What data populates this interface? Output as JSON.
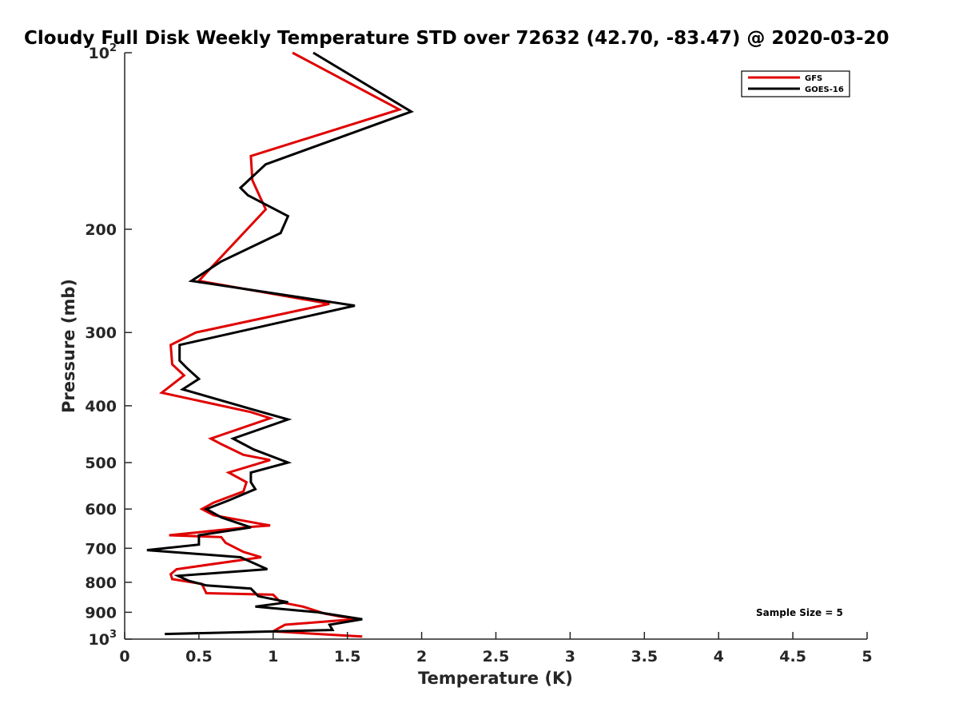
{
  "chart_data": {
    "type": "line",
    "title": "Cloudy Full Disk Weekly Temperature STD over 72632 (42.70, -83.47) @ 2020-03-20",
    "xlabel": "Temperature (K)",
    "ylabel": "Pressure (mb)",
    "xlim": [
      0,
      5
    ],
    "ylim": [
      100,
      1000
    ],
    "y_scale": "log",
    "y_reversed": true,
    "x_ticks": [
      {
        "value": 0,
        "label": "0"
      },
      {
        "value": 0.5,
        "label": "0.5"
      },
      {
        "value": 1,
        "label": "1"
      },
      {
        "value": 1.5,
        "label": "1.5"
      },
      {
        "value": 2,
        "label": "2"
      },
      {
        "value": 2.5,
        "label": "2.5"
      },
      {
        "value": 3,
        "label": "3"
      },
      {
        "value": 3.5,
        "label": "3.5"
      },
      {
        "value": 4,
        "label": "4"
      },
      {
        "value": 4.5,
        "label": "4.5"
      },
      {
        "value": 5,
        "label": "5"
      }
    ],
    "y_ticks": [
      {
        "value": 100,
        "base": "10",
        "exp": "2"
      },
      {
        "value": 200,
        "base": "200",
        "exp": ""
      },
      {
        "value": 300,
        "base": "300",
        "exp": ""
      },
      {
        "value": 400,
        "base": "400",
        "exp": ""
      },
      {
        "value": 500,
        "base": "500",
        "exp": ""
      },
      {
        "value": 600,
        "base": "600",
        "exp": ""
      },
      {
        "value": 700,
        "base": "700",
        "exp": ""
      },
      {
        "value": 800,
        "base": "800",
        "exp": ""
      },
      {
        "value": 900,
        "base": "900",
        "exp": ""
      },
      {
        "value": 1000,
        "base": "10",
        "exp": "3"
      }
    ],
    "grid": false,
    "legend_position": "top-right",
    "annotation": "Sample Size = 5",
    "series": [
      {
        "name": "GFS",
        "color": "#e00000",
        "points": [
          [
            1.13,
            100
          ],
          [
            1.85,
            125
          ],
          [
            0.85,
            150
          ],
          [
            0.86,
            165
          ],
          [
            0.95,
            185
          ],
          [
            0.6,
            230
          ],
          [
            0.5,
            245
          ],
          [
            1.38,
            268
          ],
          [
            0.48,
            300
          ],
          [
            0.31,
            315
          ],
          [
            0.32,
            340
          ],
          [
            0.4,
            355
          ],
          [
            0.25,
            380
          ],
          [
            0.85,
            410
          ],
          [
            0.98,
            420
          ],
          [
            0.58,
            455
          ],
          [
            0.65,
            465
          ],
          [
            0.8,
            485
          ],
          [
            0.98,
            495
          ],
          [
            0.7,
            520
          ],
          [
            0.82,
            540
          ],
          [
            0.8,
            560
          ],
          [
            0.6,
            585
          ],
          [
            0.52,
            600
          ],
          [
            0.6,
            615
          ],
          [
            0.9,
            635
          ],
          [
            0.98,
            640
          ],
          [
            0.87,
            643
          ],
          [
            0.3,
            665
          ],
          [
            0.65,
            670
          ],
          [
            0.68,
            685
          ],
          [
            0.8,
            710
          ],
          [
            0.92,
            725
          ],
          [
            0.35,
            760
          ],
          [
            0.31,
            775
          ],
          [
            0.32,
            790
          ],
          [
            0.52,
            805
          ],
          [
            0.55,
            835
          ],
          [
            1.0,
            840
          ],
          [
            1.05,
            865
          ],
          [
            1.2,
            880
          ],
          [
            1.35,
            905
          ],
          [
            1.55,
            925
          ],
          [
            1.08,
            945
          ],
          [
            1.03,
            960
          ],
          [
            1.0,
            970
          ],
          [
            1.6,
            990
          ]
        ]
      },
      {
        "name": "GOES-16",
        "color": "#000000",
        "points": [
          [
            1.27,
            100
          ],
          [
            1.93,
            126
          ],
          [
            0.95,
            155
          ],
          [
            0.78,
            170
          ],
          [
            0.83,
            175
          ],
          [
            1.1,
            190
          ],
          [
            1.05,
            203
          ],
          [
            0.65,
            227
          ],
          [
            0.45,
            245
          ],
          [
            1.55,
            270
          ],
          [
            0.37,
            315
          ],
          [
            0.37,
            335
          ],
          [
            0.42,
            345
          ],
          [
            0.5,
            360
          ],
          [
            0.39,
            375
          ],
          [
            0.85,
            405
          ],
          [
            1.1,
            422
          ],
          [
            0.73,
            455
          ],
          [
            0.87,
            475
          ],
          [
            1.1,
            500
          ],
          [
            0.85,
            520
          ],
          [
            0.85,
            540
          ],
          [
            0.88,
            555
          ],
          [
            0.7,
            580
          ],
          [
            0.55,
            600
          ],
          [
            0.65,
            620
          ],
          [
            0.85,
            645
          ],
          [
            0.5,
            665
          ],
          [
            0.5,
            690
          ],
          [
            0.15,
            705
          ],
          [
            0.78,
            725
          ],
          [
            0.96,
            760
          ],
          [
            0.36,
            780
          ],
          [
            0.43,
            795
          ],
          [
            0.55,
            810
          ],
          [
            0.85,
            820
          ],
          [
            0.9,
            845
          ],
          [
            1.1,
            865
          ],
          [
            0.88,
            880
          ],
          [
            1.3,
            900
          ],
          [
            1.6,
            925
          ],
          [
            1.38,
            945
          ],
          [
            1.4,
            965
          ],
          [
            0.27,
            980
          ]
        ]
      }
    ]
  }
}
